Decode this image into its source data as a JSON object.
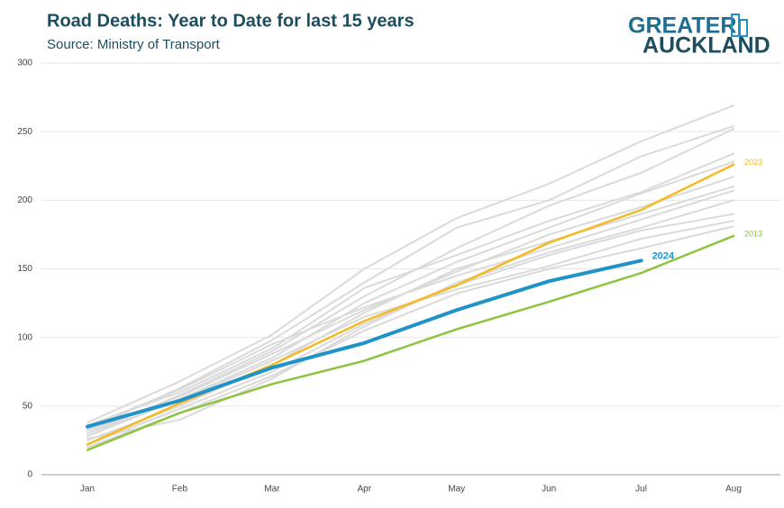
{
  "logo": [
    "GREATER",
    "AUCKLAND"
  ],
  "chart_data": {
    "type": "line",
    "title": "Road Deaths: Year to Date for last 15 years",
    "subtitle": "Source: Ministry of Transport",
    "categories": [
      "Jan",
      "Feb",
      "Mar",
      "Apr",
      "May",
      "Jun",
      "Jul",
      "Aug"
    ],
    "ylim": [
      0,
      300
    ],
    "yticks": [
      0,
      50,
      100,
      150,
      200,
      250,
      300
    ],
    "grid": true,
    "series": [
      {
        "color": "#dadada",
        "values": [
          38,
          68,
          102,
          150,
          187,
          212,
          243,
          269
        ]
      },
      {
        "color": "#dadada",
        "values": [
          33,
          63,
          98,
          140,
          180,
          200,
          232,
          254
        ]
      },
      {
        "color": "#dadada",
        "values": [
          30,
          58,
          90,
          130,
          165,
          196,
          220,
          252
        ]
      },
      {
        "color": "#dadada",
        "values": [
          36,
          60,
          92,
          136,
          160,
          185,
          206,
          234
        ]
      },
      {
        "color": "#dadada",
        "values": [
          28,
          55,
          85,
          125,
          155,
          180,
          205,
          228
        ]
      },
      {
        "color": "#dadada",
        "values": [
          32,
          57,
          88,
          120,
          148,
          175,
          195,
          217
        ]
      },
      {
        "color": "#dadada",
        "values": [
          25,
          50,
          80,
          118,
          150,
          170,
          190,
          210
        ]
      },
      {
        "color": "#dadada",
        "values": [
          35,
          62,
          95,
          122,
          145,
          165,
          186,
          207
        ]
      },
      {
        "color": "#dadada",
        "values": [
          26,
          40,
          70,
          108,
          140,
          162,
          180,
          200
        ]
      },
      {
        "color": "#dadada",
        "values": [
          22,
          48,
          75,
          110,
          138,
          160,
          178,
          190
        ]
      },
      {
        "color": "#dadada",
        "values": [
          30,
          54,
          83,
          115,
          135,
          152,
          172,
          185
        ]
      },
      {
        "color": "#dadada",
        "values": [
          20,
          45,
          72,
          105,
          132,
          150,
          165,
          181
        ]
      },
      {
        "name": "2013",
        "color": "#8cc43f",
        "values": [
          18,
          45,
          66,
          83,
          106,
          126,
          147,
          174
        ]
      },
      {
        "name": "2023",
        "color": "#f5b921",
        "values": [
          22,
          52,
          80,
          112,
          138,
          169,
          193,
          226
        ]
      },
      {
        "name": "2024",
        "color": "#1f93c8",
        "values": [
          35,
          54,
          78,
          96,
          120,
          141,
          156,
          null
        ]
      }
    ]
  }
}
